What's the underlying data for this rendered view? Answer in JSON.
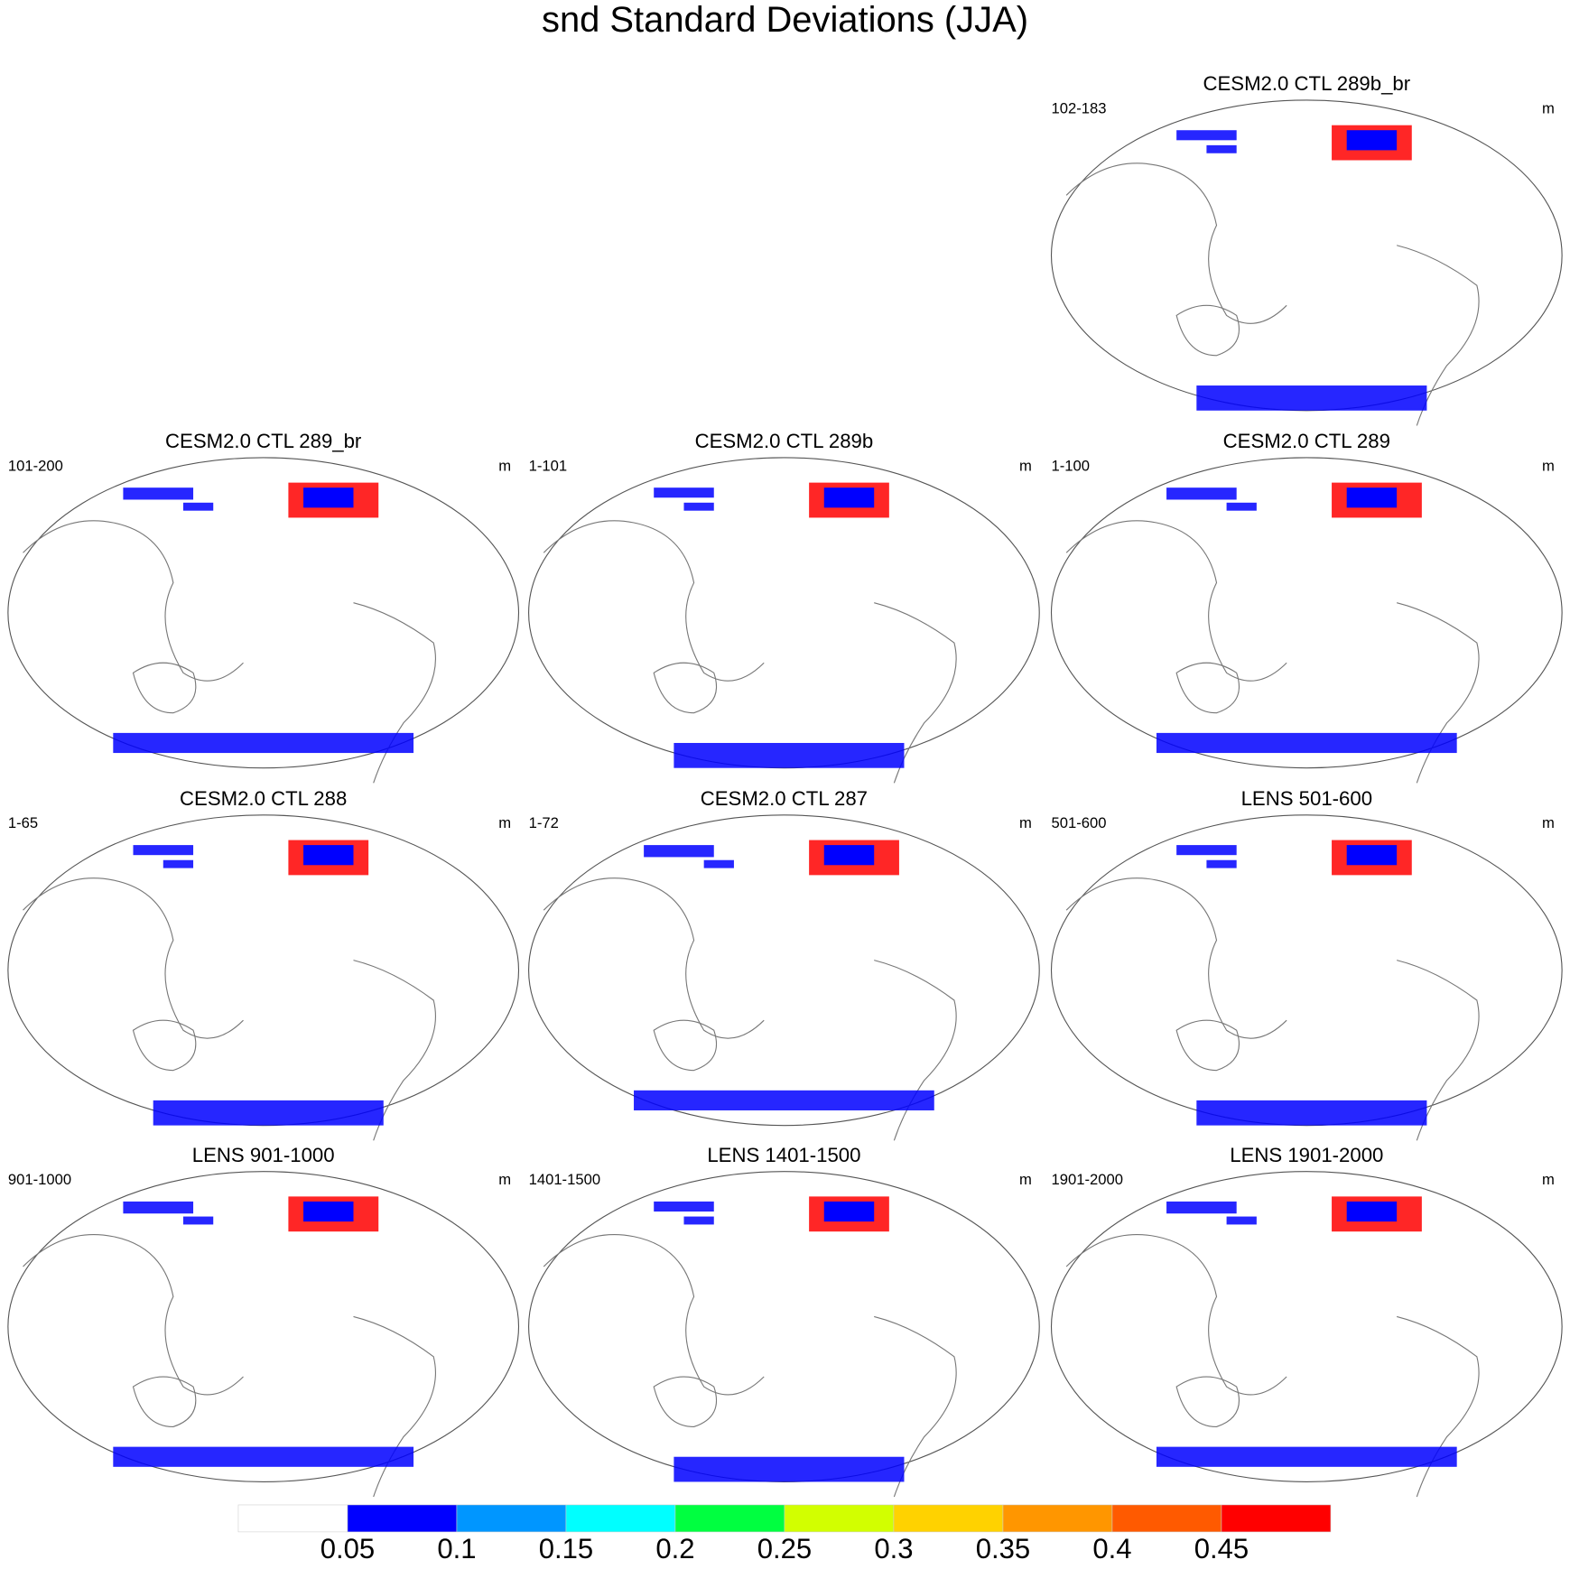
{
  "title": "snd Standard Deviations (JJA)",
  "panels": [
    {
      "title": "CESM2.0 CTL 289b_br",
      "left": "102-183",
      "right": "m"
    },
    {
      "title": "CESM2.0 CTL 289_br",
      "left": "101-200",
      "right": "m"
    },
    {
      "title": "CESM2.0 CTL 289b",
      "left": "1-101",
      "right": "m"
    },
    {
      "title": "CESM2.0 CTL 289",
      "left": "1-100",
      "right": "m"
    },
    {
      "title": "CESM2.0 CTL 288",
      "left": "1-65",
      "right": "m"
    },
    {
      "title": "CESM2.0 CTL 287",
      "left": "1-72",
      "right": "m"
    },
    {
      "title": "LENS 501-600",
      "left": "501-600",
      "right": "m"
    },
    {
      "title": "LENS 901-1000",
      "left": "901-1000",
      "right": "m"
    },
    {
      "title": "LENS 1401-1500",
      "left": "1401-1500",
      "right": "m"
    },
    {
      "title": "LENS 1901-2000",
      "left": "1901-2000",
      "right": "m"
    }
  ],
  "colorbar": {
    "levels": [
      0.05,
      0.1,
      0.15,
      0.2,
      0.25,
      0.3,
      0.35,
      0.4,
      0.45
    ],
    "colors": [
      "#ffffff",
      "#0000ff",
      "#0096ff",
      "#00ffff",
      "#00ff40",
      "#d2ff00",
      "#ffd200",
      "#ff9600",
      "#ff5a00",
      "#ff0000"
    ]
  }
}
